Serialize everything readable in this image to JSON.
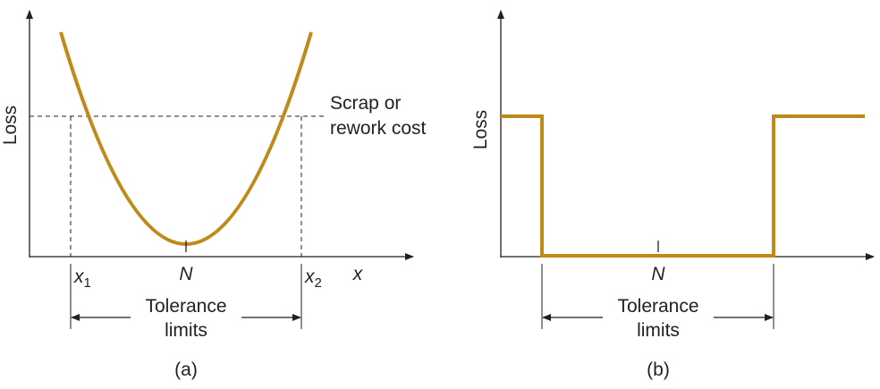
{
  "panel_a": {
    "ylabel": "Loss",
    "annotation_line1": "Scrap or",
    "annotation_line2": "rework cost",
    "x1_base": "x",
    "x1_sub": "1",
    "x2_base": "x",
    "x2_sub": "2",
    "center_label": "N",
    "xlabel": "x",
    "tolerance_line1": "Tolerance",
    "tolerance_line2": "limits",
    "caption": "(a)"
  },
  "panel_b": {
    "ylabel": "Loss",
    "center_label": "N",
    "tolerance_line1": "Tolerance",
    "tolerance_line2": "limits",
    "caption": "(b)"
  },
  "colors": {
    "curve": "#c08a1a",
    "line": "#231f20"
  }
}
